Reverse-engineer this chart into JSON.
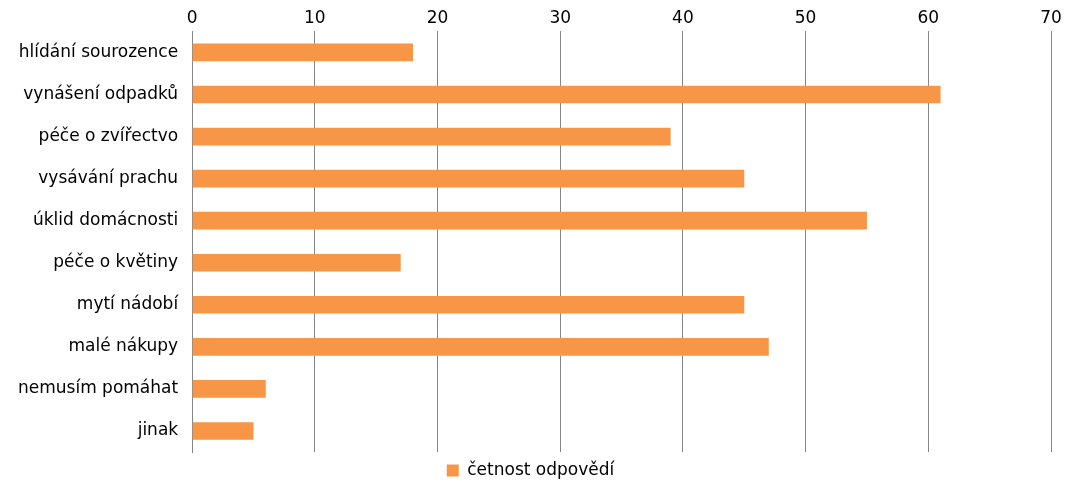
{
  "chart_data": {
    "type": "bar",
    "orientation": "horizontal",
    "categories": [
      "hlídání sourozence",
      "vynášení odpadků",
      "péče o zvířectvo",
      "vysávání prachu",
      "úklid domácnosti",
      "péče o květiny",
      "mytí nádobí",
      "malé nákupy",
      "nemusím pomáhat",
      "jinak"
    ],
    "series": [
      {
        "name": "četnost odpovědí",
        "color": "#f79646",
        "values": [
          18,
          61,
          39,
          45,
          55,
          17,
          45,
          47,
          6,
          5
        ]
      }
    ],
    "xlim": [
      0,
      70
    ],
    "xticks": [
      0,
      10,
      20,
      30,
      40,
      50,
      60,
      70
    ],
    "grid": "x",
    "legend": "bottom"
  }
}
